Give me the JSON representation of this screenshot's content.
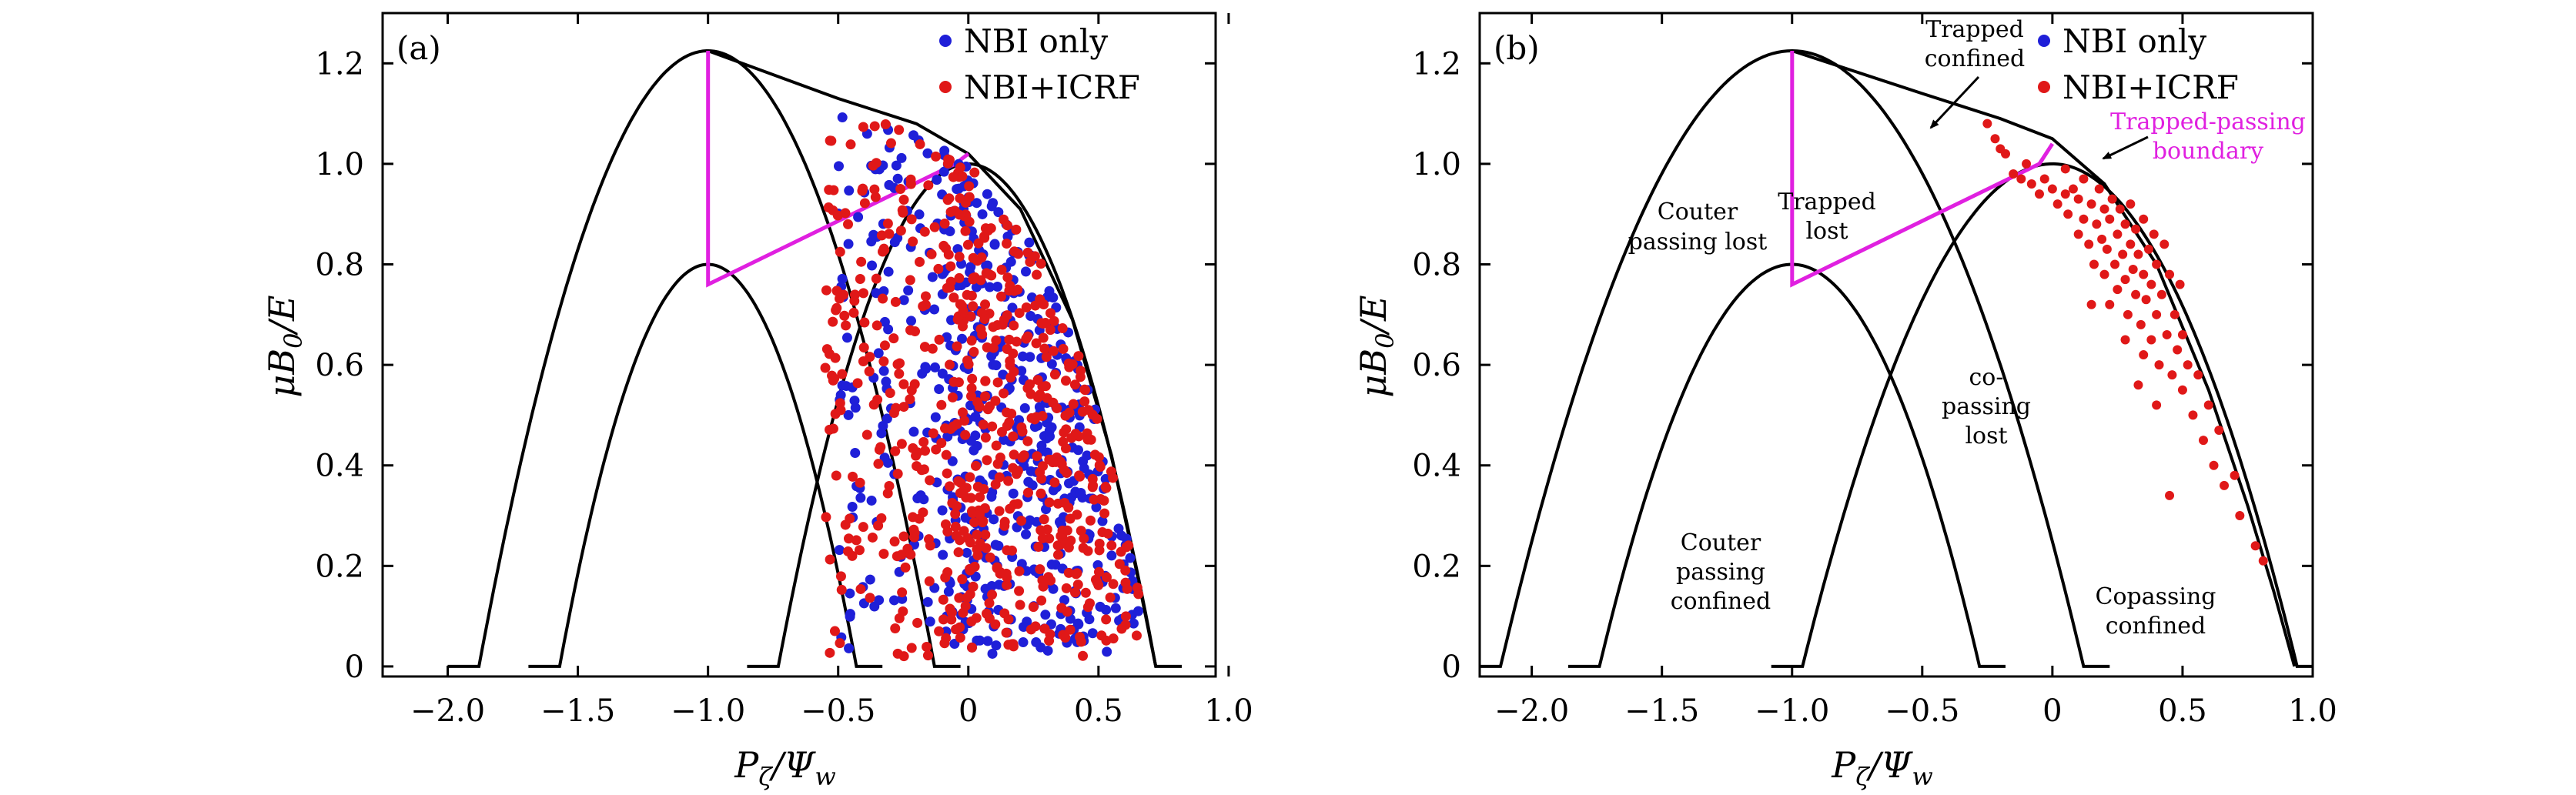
{
  "figure": {
    "legend": [
      {
        "label": "NBI only",
        "color": "#1f1fd8"
      },
      {
        "label": "NBI+ICRF",
        "color": "#e01818"
      }
    ],
    "colors": {
      "curve": "#000000",
      "boundary": "#e020e0"
    }
  },
  "chart_data": [
    {
      "type": "scatter",
      "panel": "(a)",
      "xlabel": "P_ζ/Ψ_w",
      "ylabel": "μB_0/E",
      "xlim": [
        -2.25,
        0.95
      ],
      "ylim": [
        -0.02,
        1.3
      ],
      "xticks": [
        -2.0,
        -1.5,
        -1.0,
        -0.5,
        0,
        0.5,
        1.0
      ],
      "xtick_labels": [
        "−2.0",
        "−1.5",
        "−1.0",
        "−0.5",
        "0",
        "0.5",
        "1.0"
      ],
      "yticks": [
        0,
        0.2,
        0.4,
        0.6,
        0.8,
        1.0,
        1.2
      ],
      "ytick_labels": [
        "0",
        "0.2",
        "0.4",
        "0.6",
        "0.8",
        "1.0",
        "1.2"
      ],
      "legend_position": "top-right",
      "curves": [
        {
          "apex_x": -1.0,
          "apex_y": 1.225,
          "left_root": -1.88,
          "right_root": -0.13
        },
        {
          "apex_x": -1.0,
          "apex_y": 0.8,
          "left_root": -1.57,
          "right_root": -0.43
        },
        {
          "apex_x": 0.0,
          "apex_y": 1.0,
          "left_root": -0.73,
          "right_root": 0.72
        },
        {
          "type": "envelope",
          "points": [
            [
              -1.0,
              1.225
            ],
            [
              -0.5,
              1.13
            ],
            [
              -0.2,
              1.08
            ],
            [
              0.0,
              1.02
            ],
            [
              0.2,
              0.91
            ],
            [
              0.4,
              0.69
            ],
            [
              0.55,
              0.42
            ],
            [
              0.65,
              0.18
            ],
            [
              0.72,
              0.0
            ]
          ]
        }
      ],
      "boundary": {
        "points": [
          [
            -1.0,
            1.225
          ],
          [
            -1.0,
            0.76
          ],
          [
            -0.05,
            1.0
          ],
          [
            0.0,
            1.02
          ]
        ]
      },
      "series": [
        {
          "name": "NBI only",
          "color": "#1f1fd8",
          "region": {
            "xmin": -0.5,
            "xmax": 0.7,
            "ymin": 0.02,
            "ymax": 1.1
          },
          "count": 520
        },
        {
          "name": "NBI+ICRF",
          "color": "#e01818",
          "region": {
            "xmin": -0.55,
            "xmax": 0.7,
            "ymin": 0.02,
            "ymax": 1.13
          },
          "count": 620
        }
      ]
    },
    {
      "type": "scatter",
      "panel": "(b)",
      "xlabel": "P_ζ/Ψ_w",
      "ylabel": "μB_0/E",
      "xlim": [
        -2.2,
        1.0
      ],
      "ylim": [
        -0.02,
        1.3
      ],
      "xticks": [
        -2.0,
        -1.5,
        -1.0,
        -0.5,
        0,
        0.5,
        1.0
      ],
      "xtick_labels": [
        "−2.0",
        "−1.5",
        "−1.0",
        "−0.5",
        "0",
        "0.5",
        "1.0"
      ],
      "yticks": [
        0,
        0.2,
        0.4,
        0.6,
        0.8,
        1.0,
        1.2
      ],
      "ytick_labels": [
        "0",
        "0.2",
        "0.4",
        "0.6",
        "0.8",
        "1.0",
        "1.2"
      ],
      "legend_position": "top-right",
      "curves": [
        {
          "apex_x": -1.0,
          "apex_y": 1.225,
          "left_root": -2.12,
          "right_root": 0.12
        },
        {
          "apex_x": -1.0,
          "apex_y": 0.8,
          "left_root": -1.74,
          "right_root": -0.28
        },
        {
          "apex_x": 0.0,
          "apex_y": 1.0,
          "left_root": -0.96,
          "right_root": 0.94
        },
        {
          "type": "envelope",
          "points": [
            [
              -1.0,
              1.225
            ],
            [
              -0.5,
              1.14
            ],
            [
              -0.2,
              1.09
            ],
            [
              0.0,
              1.05
            ],
            [
              0.2,
              0.96
            ],
            [
              0.4,
              0.8
            ],
            [
              0.6,
              0.55
            ],
            [
              0.75,
              0.32
            ],
            [
              0.85,
              0.15
            ],
            [
              0.93,
              0.0
            ]
          ]
        }
      ],
      "boundary": {
        "points": [
          [
            -1.0,
            1.225
          ],
          [
            -1.0,
            0.76
          ],
          [
            -0.05,
            1.0
          ],
          [
            0.0,
            1.04
          ]
        ]
      },
      "series": [
        {
          "name": "NBI+ICRF",
          "color": "#e01818",
          "points": [
            [
              -0.2,
              1.03
            ],
            [
              -0.18,
              1.02
            ],
            [
              -0.15,
              0.98
            ],
            [
              -0.12,
              0.97
            ],
            [
              -0.1,
              1.0
            ],
            [
              -0.08,
              0.96
            ],
            [
              -0.05,
              0.94
            ],
            [
              -0.03,
              0.97
            ],
            [
              0.0,
              0.95
            ],
            [
              0.02,
              0.92
            ],
            [
              0.05,
              0.99
            ],
            [
              0.06,
              0.9
            ],
            [
              0.08,
              0.95
            ],
            [
              0.1,
              0.93
            ],
            [
              0.1,
              0.86
            ],
            [
              0.12,
              0.97
            ],
            [
              0.12,
              0.89
            ],
            [
              0.14,
              0.84
            ],
            [
              0.15,
              0.92
            ],
            [
              0.16,
              0.8
            ],
            [
              0.17,
              0.88
            ],
            [
              0.18,
              0.95
            ],
            [
              0.19,
              0.85
            ],
            [
              0.2,
              0.91
            ],
            [
              0.2,
              0.78
            ],
            [
              0.21,
              0.83
            ],
            [
              0.22,
              0.89
            ],
            [
              0.22,
              0.72
            ],
            [
              0.23,
              0.93
            ],
            [
              0.24,
              0.8
            ],
            [
              0.25,
              0.86
            ],
            [
              0.25,
              0.75
            ],
            [
              0.26,
              0.91
            ],
            [
              0.27,
              0.82
            ],
            [
              0.28,
              0.77
            ],
            [
              0.28,
              0.88
            ],
            [
              0.29,
              0.7
            ],
            [
              0.3,
              0.84
            ],
            [
              0.3,
              0.92
            ],
            [
              0.31,
              0.79
            ],
            [
              0.32,
              0.74
            ],
            [
              0.32,
              0.87
            ],
            [
              0.33,
              0.82
            ],
            [
              0.34,
              0.68
            ],
            [
              0.35,
              0.78
            ],
            [
              0.35,
              0.89
            ],
            [
              0.36,
              0.73
            ],
            [
              0.37,
              0.83
            ],
            [
              0.38,
              0.65
            ],
            [
              0.38,
              0.76
            ],
            [
              0.39,
              0.86
            ],
            [
              0.4,
              0.7
            ],
            [
              0.4,
              0.8
            ],
            [
              0.41,
              0.6
            ],
            [
              0.42,
              0.74
            ],
            [
              0.43,
              0.84
            ],
            [
              0.44,
              0.66
            ],
            [
              0.45,
              0.78
            ],
            [
              0.46,
              0.58
            ],
            [
              0.47,
              0.7
            ],
            [
              0.48,
              0.63
            ],
            [
              0.49,
              0.76
            ],
            [
              0.5,
              0.55
            ],
            [
              0.5,
              0.66
            ],
            [
              0.52,
              0.6
            ],
            [
              0.54,
              0.5
            ],
            [
              0.56,
              0.58
            ],
            [
              0.58,
              0.45
            ],
            [
              0.6,
              0.52
            ],
            [
              0.62,
              0.4
            ],
            [
              0.64,
              0.47
            ],
            [
              0.66,
              0.36
            ],
            [
              0.7,
              0.38
            ],
            [
              0.72,
              0.3
            ],
            [
              0.78,
              0.24
            ],
            [
              0.81,
              0.21
            ],
            [
              0.4,
              0.52
            ],
            [
              0.35,
              0.62
            ],
            [
              0.28,
              0.65
            ],
            [
              0.45,
              0.34
            ],
            [
              0.05,
              0.94
            ],
            [
              -0.22,
              1.05
            ],
            [
              -0.25,
              1.08
            ],
            [
              0.15,
              0.72
            ],
            [
              0.33,
              0.56
            ]
          ]
        }
      ],
      "annotations": [
        "Trapped",
        "confined",
        "Trapped",
        "lost",
        "Couter",
        "passing lost",
        "co-",
        "passing",
        "lost",
        "Couter",
        "passing",
        "confined",
        "Copassing",
        "confined",
        "Trapped-passing",
        "boundary"
      ]
    }
  ]
}
